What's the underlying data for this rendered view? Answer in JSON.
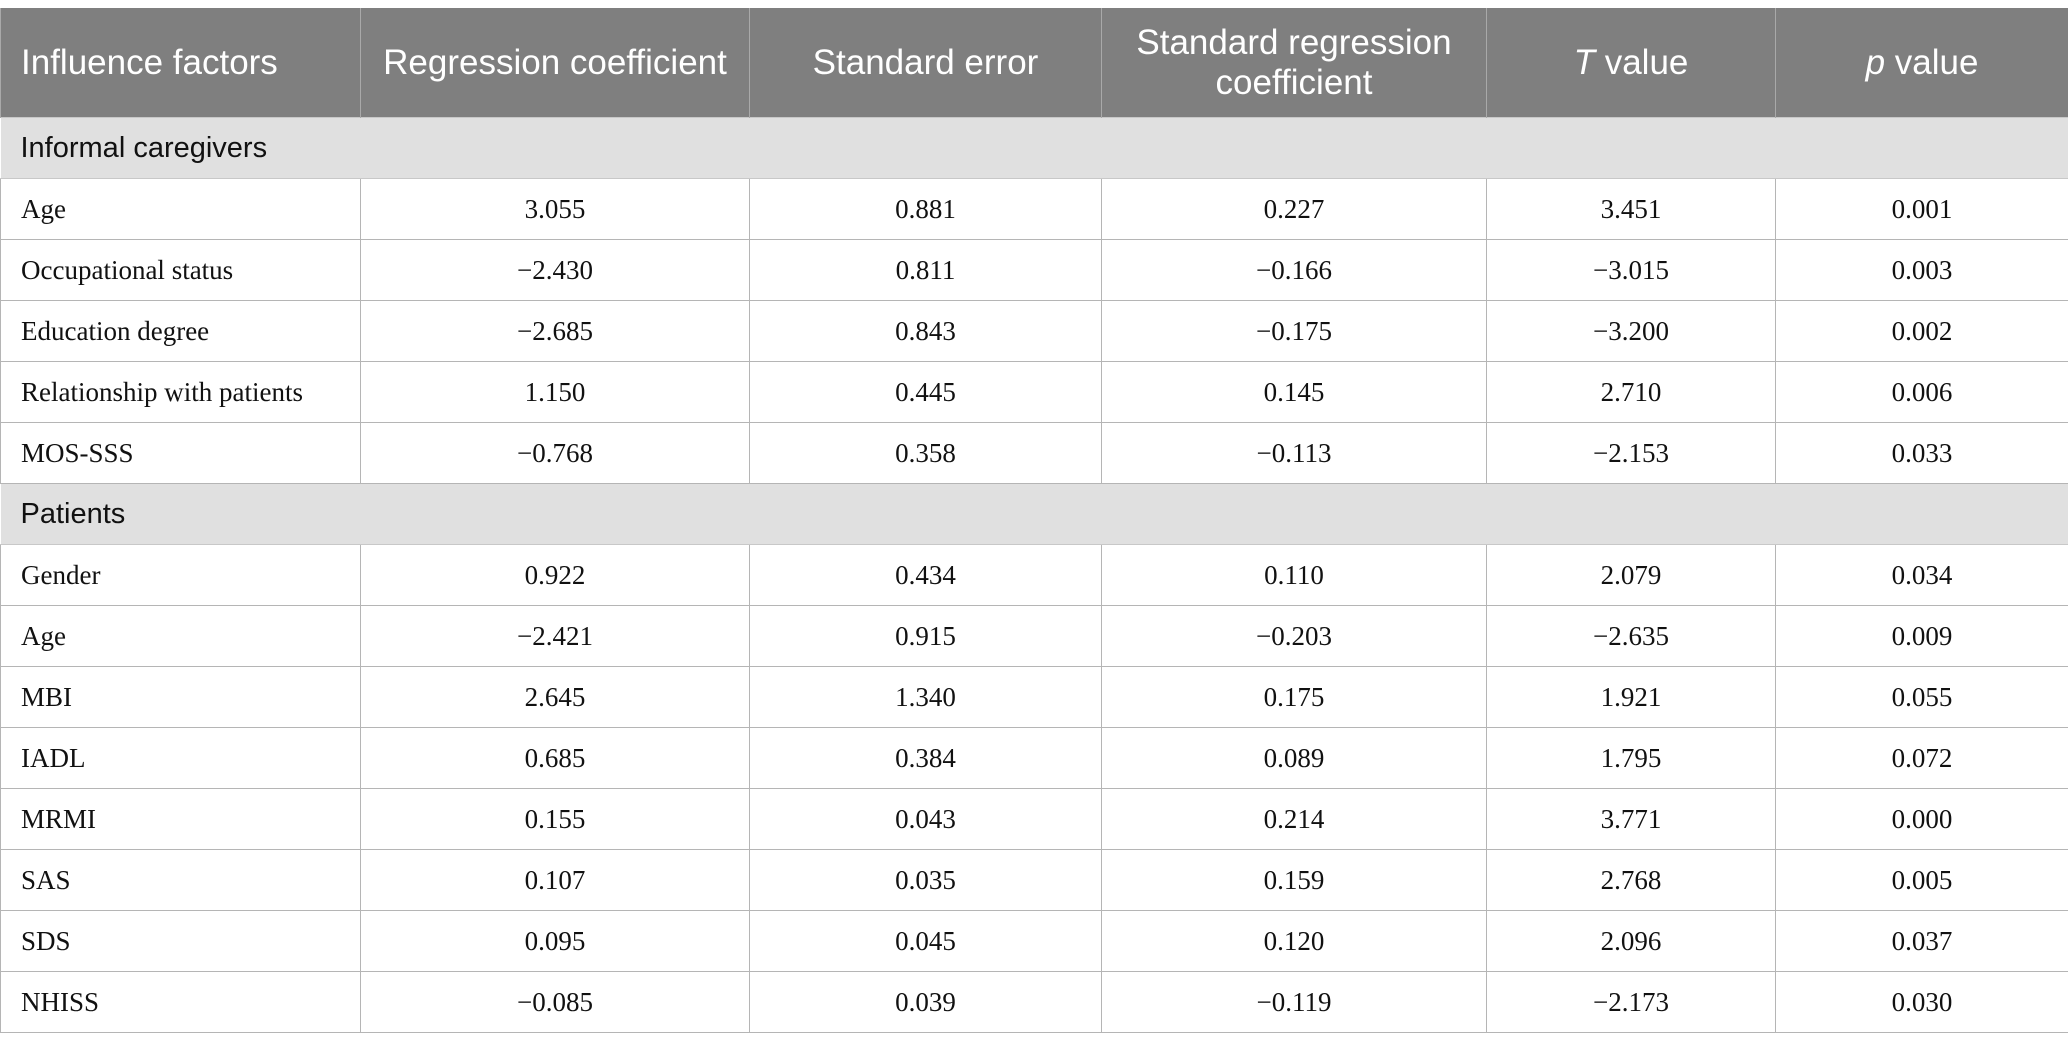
{
  "table": {
    "headers": [
      {
        "text": "Influence factors",
        "italic_prefix": ""
      },
      {
        "text": "Regression coefficient",
        "italic_prefix": ""
      },
      {
        "text": "Standard error",
        "italic_prefix": ""
      },
      {
        "text": "Standard regression coefficient",
        "italic_prefix": ""
      },
      {
        "text": " value",
        "italic_prefix": "T"
      },
      {
        "text": " value",
        "italic_prefix": "p"
      }
    ],
    "sections": [
      {
        "title": "Informal caregivers",
        "rows": [
          [
            "Age",
            "3.055",
            "0.881",
            "0.227",
            "3.451",
            "0.001"
          ],
          [
            "Occupational status",
            "−2.430",
            "0.811",
            "−0.166",
            "−3.015",
            "0.003"
          ],
          [
            "Education degree",
            "−2.685",
            "0.843",
            "−0.175",
            "−3.200",
            "0.002"
          ],
          [
            "Relationship with patients",
            "1.150",
            "0.445",
            "0.145",
            "2.710",
            "0.006"
          ],
          [
            "MOS-SSS",
            "−0.768",
            "0.358",
            "−0.113",
            "−2.153",
            "0.033"
          ]
        ]
      },
      {
        "title": "Patients",
        "rows": [
          [
            "Gender",
            "0.922",
            "0.434",
            "0.110",
            "2.079",
            "0.034"
          ],
          [
            "Age",
            "−2.421",
            "0.915",
            "−0.203",
            "−2.635",
            "0.009"
          ],
          [
            "MBI",
            "2.645",
            "1.340",
            "0.175",
            "1.921",
            "0.055"
          ],
          [
            "IADL",
            "0.685",
            "0.384",
            "0.089",
            "1.795",
            "0.072"
          ],
          [
            "MRMI",
            "0.155",
            "0.043",
            "0.214",
            "3.771",
            "0.000"
          ],
          [
            "SAS",
            "0.107",
            "0.035",
            "0.159",
            "2.768",
            "0.005"
          ],
          [
            "SDS",
            "0.095",
            "0.045",
            "0.120",
            "2.096",
            "0.037"
          ],
          [
            "NHISS",
            "−0.085",
            "0.039",
            "−0.119",
            "−2.173",
            "0.030"
          ]
        ]
      }
    ]
  },
  "colors": {
    "header_bg": "#7f7f7f",
    "section_bg": "#e0e0e0",
    "border": "#b5b5b5"
  }
}
